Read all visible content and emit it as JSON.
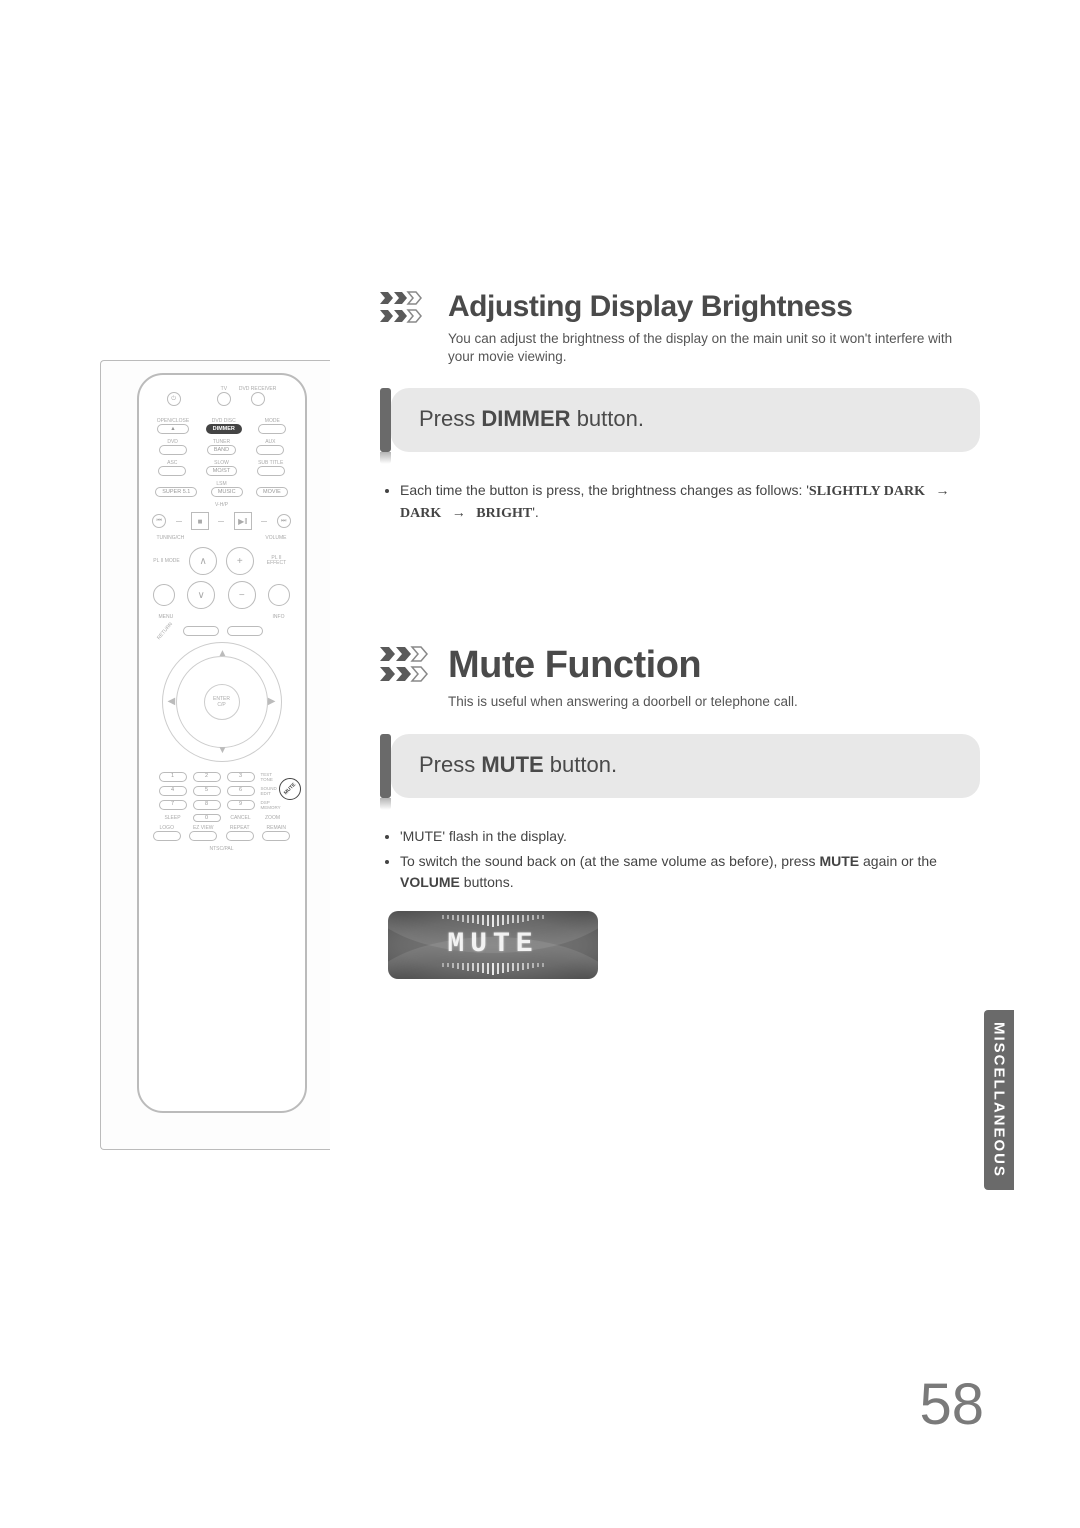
{
  "page_number": "58",
  "side_tab": "MISCELLANEOUS",
  "remote": {
    "top_labels": {
      "tv": "TV",
      "dvd": "DVD RECEIVER"
    },
    "row1": {
      "open": "OPEN/CLOSE",
      "dimmer_label": "DVD DISC",
      "dimmer": "DIMMER",
      "mode": "MODE"
    },
    "row2": {
      "dvd": "DVD",
      "tuner_label": "TUNER",
      "band": "BAND",
      "aux": "AUX"
    },
    "row3": {
      "asc": "ASC",
      "slow_label": "SLOW",
      "mo_st": "MO/ST",
      "subtitle": "SUB TITLE"
    },
    "row4_label": "LSM",
    "row4": {
      "a": "SUPER 5.1",
      "b": "MUSIC",
      "c": "MOVIE"
    },
    "vhp": "V-H/P",
    "tuning_label": "TUNING/CH",
    "volume_label": "VOLUME",
    "pl_left": "PL II MODE",
    "pl_right": "PL II EFFECT",
    "menu": "MENU",
    "info": "INFO",
    "return": "RETURN",
    "mute": "MUTE",
    "enter": "ENTER",
    "cp": "C/P",
    "nums": [
      "1",
      "2",
      "3",
      "4",
      "5",
      "6",
      "7",
      "8",
      "9",
      "0"
    ],
    "side_labels": {
      "test": "TEST TONE",
      "sound": "SOUND EDIT",
      "dsp": "DSP MEMORY"
    },
    "bottom": {
      "sleep": "SLEEP",
      "cancel": "CANCEL",
      "zoom": "ZOOM",
      "logo": "LOGO",
      "ez": "EZ VIEW",
      "repeat": "REPEAT",
      "remain": "REMAIN",
      "ntsc": "NTSC/PAL"
    }
  },
  "section1": {
    "title": "Adjusting Display Brightness",
    "subtitle": "You can adjust the brightness of the display on the main unit so it won't interfere with your movie viewing.",
    "step_pre": "Press ",
    "step_bold": "DIMMER",
    "step_post": " button.",
    "bullet1_a": "Each time the button is press, the brightness changes as follows: '",
    "bullet1_cycle_1": "SLIGHTLY DARK",
    "bullet1_cycle_2": "DARK",
    "bullet1_cycle_3": "BRIGHT",
    "bullet1_b": "'."
  },
  "section2": {
    "title": "Mute Function",
    "subtitle": "This is useful when answering a doorbell or telephone call.",
    "step_pre": "Press ",
    "step_bold": "MUTE",
    "step_post": " button.",
    "bullet1": "'MUTE' flash in the display.",
    "bullet2_a": "To switch the sound back on (at the same volume as before), press ",
    "bullet2_b": "MUTE",
    "bullet2_c": " again or the ",
    "bullet2_d": "VOLUME",
    "bullet2_e": " buttons.",
    "display_text": "MUTE"
  },
  "colors": {
    "bar": "#6a6a6a",
    "step_bg": "#e8e8e8",
    "title": "#4a4a4a",
    "body": "#444444"
  }
}
